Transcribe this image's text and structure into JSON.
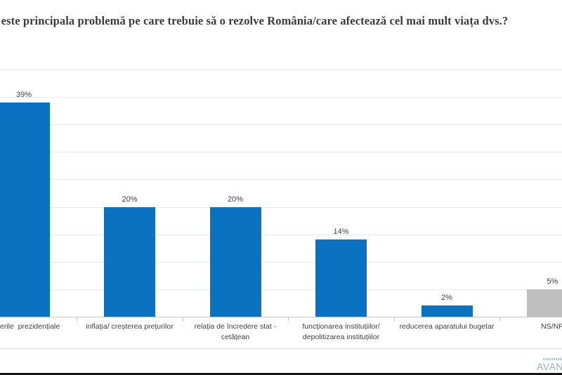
{
  "title": "e este principala problemă pe care trebuie să o rezolve România/care afectează cel mai mult viața dvs.?",
  "chart_data": {
    "type": "bar",
    "categories": [
      "erile  prezidențiale",
      "inflația/ creșterea prețurilor",
      "relația de încredere stat -\ncetățean",
      "funcționarea instituțiilor/\ndepolitizarea instituțiilor",
      "reducerea aparatului bugetar",
      "NS/NR"
    ],
    "values": [
      39,
      20,
      20,
      14,
      2,
      5
    ],
    "value_labels": [
      "39%",
      "20%",
      "20%",
      "14%",
      "2%",
      "5%"
    ],
    "bar_colors": [
      "#0a72c0",
      "#0a72c0",
      "#0a72c0",
      "#0a72c0",
      "#0a72c0",
      "#bfbfbf"
    ],
    "title": "e este principala problemă pe care trebuie să o rezolve România/care afectează cel mai mult viața dvs.?",
    "xlabel": "",
    "ylabel": "",
    "ylim": [
      0,
      45
    ],
    "gridline_step": 5,
    "grid": true,
    "legend": "none"
  },
  "logo": {
    "text": "AVAN"
  },
  "colors": {
    "bar_blue": "#0a72c0",
    "bar_gray": "#bfbfbf",
    "title_text": "#3a3a3a",
    "label_text": "#404040",
    "gridline": "#e8e8e8",
    "logo_blue": "#8fb0c0"
  }
}
